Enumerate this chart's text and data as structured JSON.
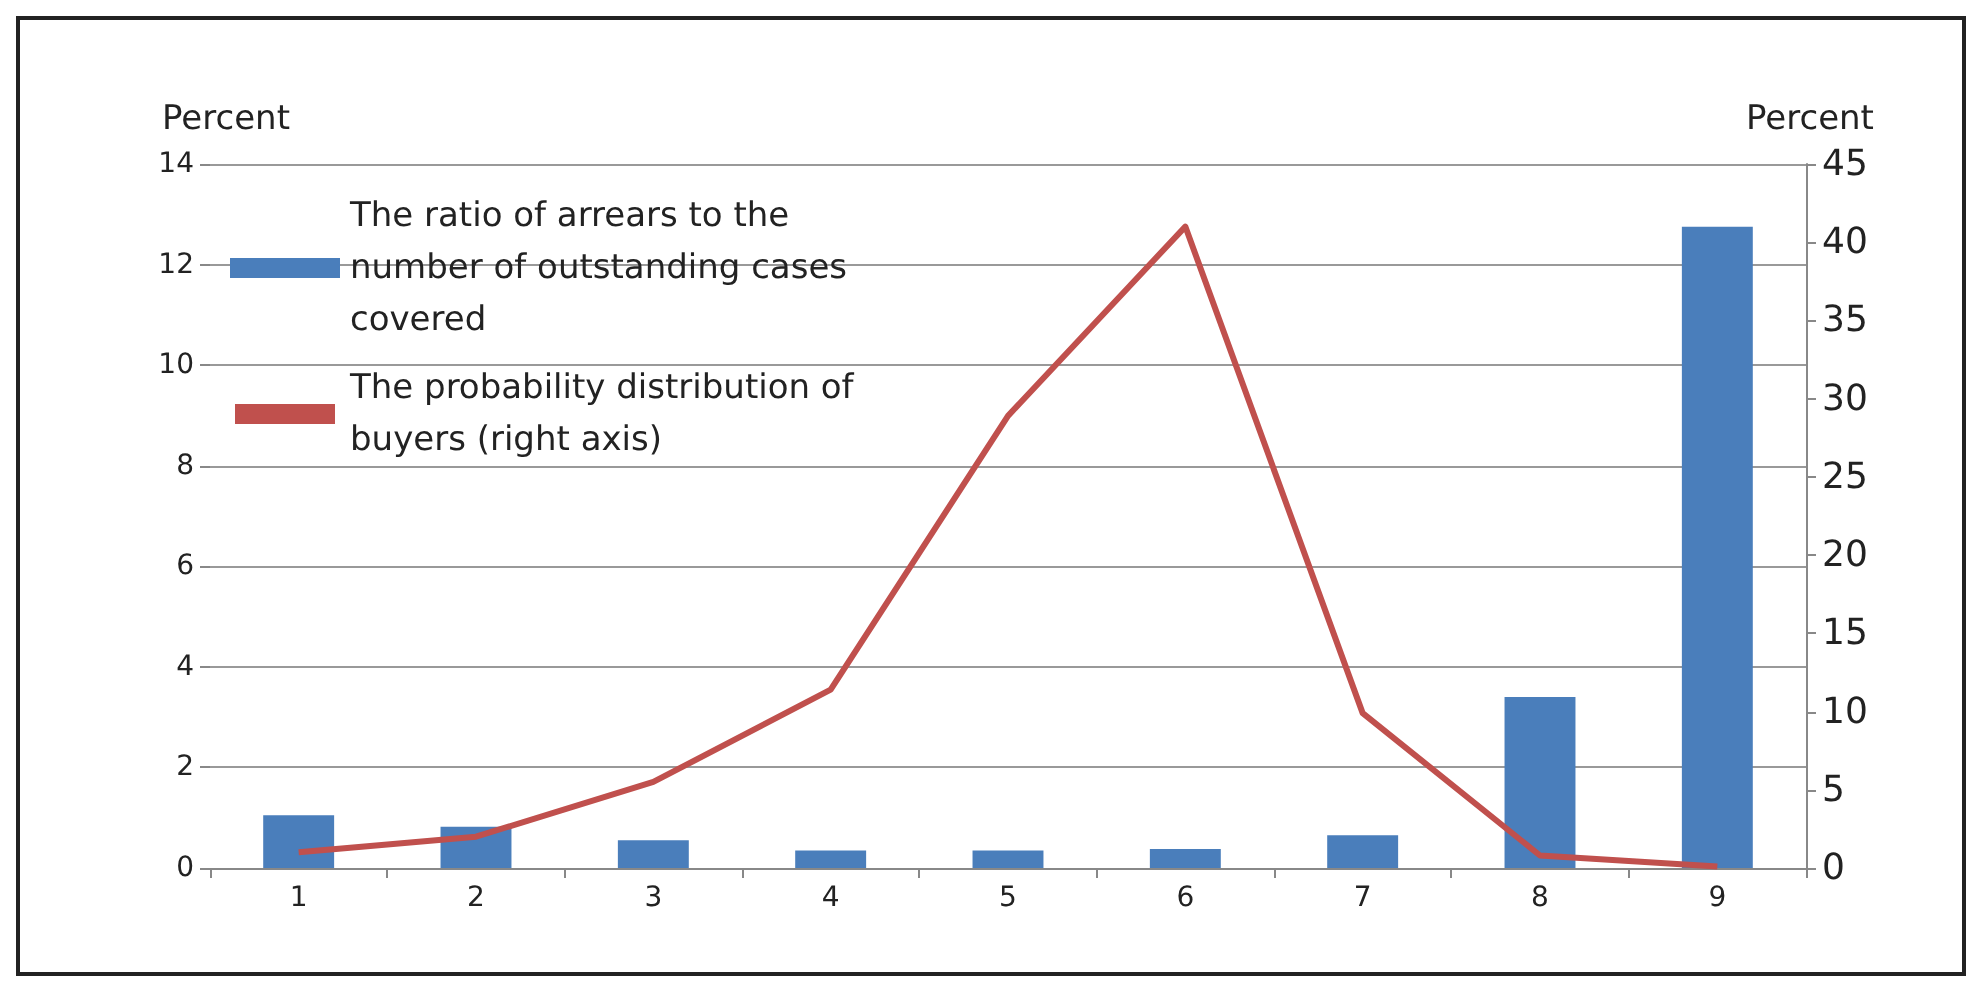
{
  "chart_data": {
    "type": "bar",
    "ylabel": "Percent",
    "y2label": "Percent",
    "categories": [
      "1",
      "2",
      "3",
      "4",
      "5",
      "6",
      "7",
      "8",
      "9"
    ],
    "series": [
      {
        "name": "The ratio of arrears to the number of outstanding cases covered",
        "color": "#4a7ebb",
        "values": [
          1.05,
          0.82,
          0.55,
          0.35,
          0.35,
          0.38,
          0.65,
          3.4,
          12.75
        ]
      },
      {
        "name": "The probability distribution of buyers (right axis)",
        "type": "line",
        "axis": "y2",
        "color": "#c0504d",
        "values": [
          1,
          2,
          5.5,
          11.4,
          28.9,
          41,
          9.9,
          0.8,
          0.1
        ]
      }
    ],
    "ylim": [
      0,
      14
    ],
    "yticks": [
      0,
      2,
      4,
      6,
      8,
      10,
      12,
      14
    ],
    "y2lim": [
      0,
      45
    ],
    "y2ticks": [
      0,
      5,
      10,
      15,
      20,
      25,
      30,
      35,
      40,
      45
    ],
    "grid": "y",
    "legend": "top left",
    "marker": "none",
    "line_style": "solid"
  }
}
